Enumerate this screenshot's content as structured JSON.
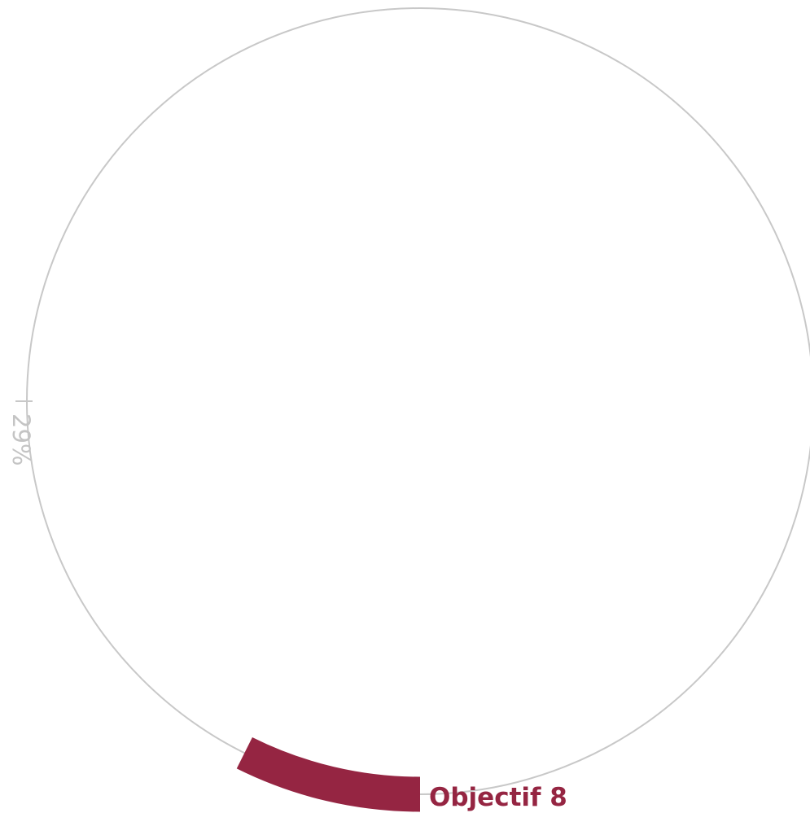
{
  "chart_data": {
    "type": "radial-progress",
    "label": "Objectif 8",
    "value": 29,
    "value_label": "29%",
    "max": 100,
    "colors": {
      "progress": "#952542",
      "track": "#c8c8c8",
      "percent_text": "#c4c4c4",
      "label_text": "#952542"
    }
  }
}
